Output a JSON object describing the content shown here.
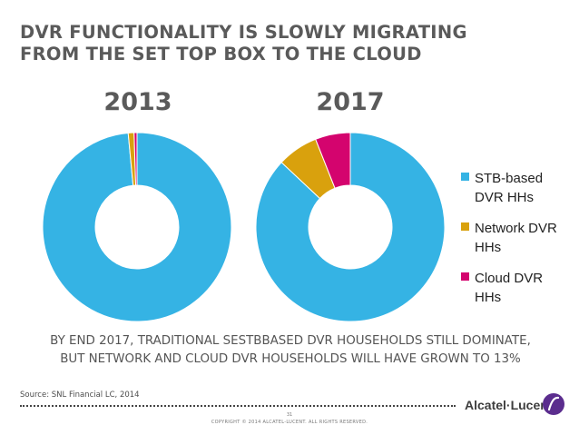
{
  "slide": {
    "title_line1": "DVR FUNCTIONALITY IS SLOWLY MIGRATING",
    "title_line2": "FROM THE SET TOP BOX TO THE CLOUD",
    "note_line1": "BY END 2017, TRADITIONAL SESTBBASED DVR HOUSEHOLDS STILL DOMINATE,",
    "note_line2": "BUT NETWORK AND CLOUD DVR HOUSEHOLDS WILL HAVE GROWN TO 13%",
    "source": "Source: SNL Financial LC, 2014",
    "page_number": "31",
    "copyright": "COPYRIGHT © 2014 ALCATEL-LUCENT.  ALL RIGHTS RESERVED.",
    "logo_text": "Alcatel·Lucent"
  },
  "colors": {
    "stb": "#35b3e4",
    "network": "#d9a10d",
    "cloud": "#d4046e"
  },
  "chart_data": [
    {
      "type": "pie",
      "title": "2013",
      "donut": true,
      "categories": [
        "STB-based DVR HHs",
        "Network DVR HHs",
        "Cloud DVR HHs"
      ],
      "values": [
        98.5,
        1.0,
        0.5
      ]
    },
    {
      "type": "pie",
      "title": "2017",
      "donut": true,
      "categories": [
        "STB-based DVR HHs",
        "Network DVR HHs",
        "Cloud DVR HHs"
      ],
      "values": [
        87,
        7,
        6
      ]
    }
  ],
  "legend": {
    "placement": "right",
    "items": [
      {
        "line1": "STB-based",
        "line2": "DVR HHs"
      },
      {
        "line1": "Network DVR",
        "line2": "HHs"
      },
      {
        "line1": "Cloud DVR",
        "line2": "HHs"
      }
    ]
  }
}
